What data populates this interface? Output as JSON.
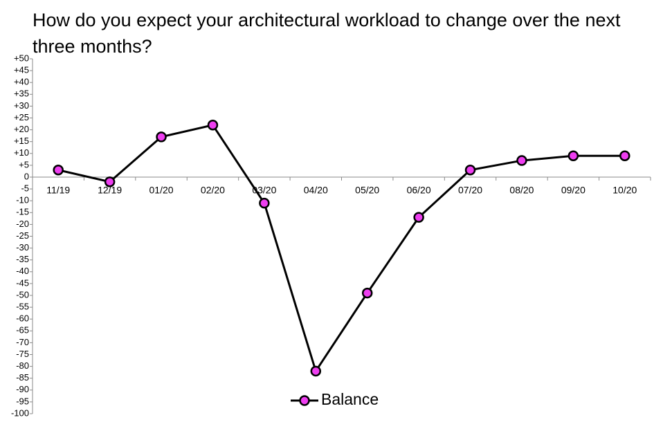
{
  "chart_data": {
    "type": "line",
    "title": "How do you expect your architectural workload to change over the next three months?",
    "categories": [
      "11/19",
      "12/19",
      "01/20",
      "02/20",
      "03/20",
      "04/20",
      "05/20",
      "06/20",
      "07/20",
      "08/20",
      "09/20",
      "10/20"
    ],
    "series": [
      {
        "name": "Balance",
        "color": "#ee3ef0",
        "values": [
          3,
          -2,
          17,
          22,
          -11,
          -82,
          -49,
          -17,
          3,
          7,
          9,
          9
        ]
      }
    ],
    "ylim": [
      -100,
      50
    ],
    "yticks": [
      {
        "value": 50,
        "label": "+50"
      },
      {
        "value": 45,
        "label": "+45"
      },
      {
        "value": 40,
        "label": "+40"
      },
      {
        "value": 35,
        "label": "+35"
      },
      {
        "value": 30,
        "label": "+30"
      },
      {
        "value": 25,
        "label": "+25"
      },
      {
        "value": 20,
        "label": "+20"
      },
      {
        "value": 15,
        "label": "+15"
      },
      {
        "value": 10,
        "label": "+10"
      },
      {
        "value": 5,
        "label": "+5"
      },
      0,
      -5,
      -10,
      -15,
      -20,
      -25,
      -30,
      -35,
      -40,
      -45,
      -50,
      -55,
      -60,
      -65,
      -70,
      -75,
      -80,
      -85,
      -90,
      -95,
      -100
    ],
    "legend": "bottom"
  }
}
